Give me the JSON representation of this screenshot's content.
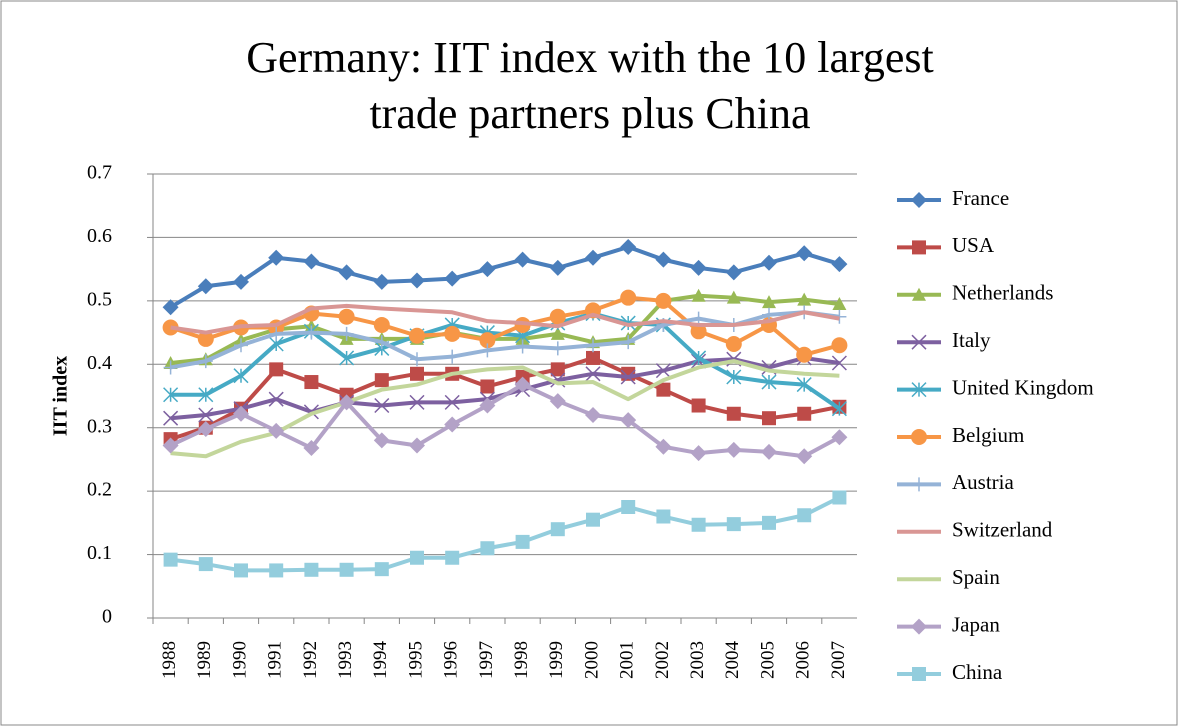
{
  "chart_data": {
    "type": "line",
    "title": [
      "Germany: IIT index with the 10 largest",
      "trade partners plus China"
    ],
    "ylabel": "IIT index",
    "categories": [
      "1988",
      "1989",
      "1990",
      "1991",
      "1992",
      "1993",
      "1994",
      "1995",
      "1996",
      "1997",
      "1998",
      "1999",
      "2000",
      "2001",
      "2002",
      "2003",
      "2004",
      "2005",
      "2006",
      "2007"
    ],
    "ylim": [
      0,
      0.7
    ],
    "yticks": [
      0,
      0.1,
      0.2,
      0.3,
      0.4,
      0.5,
      0.6,
      0.7
    ],
    "grid": true,
    "legend": "right",
    "series": [
      {
        "name": "France",
        "color": "#4a7ebb",
        "marker": "diamond",
        "values": [
          0.49,
          0.523,
          0.53,
          0.568,
          0.562,
          0.545,
          0.53,
          0.532,
          0.535,
          0.55,
          0.565,
          0.552,
          0.568,
          0.585,
          0.565,
          0.552,
          0.545,
          0.56,
          0.575,
          0.558
        ]
      },
      {
        "name": "USA",
        "color": "#be4b48",
        "marker": "square",
        "values": [
          0.282,
          0.3,
          0.33,
          0.392,
          0.372,
          0.352,
          0.375,
          0.385,
          0.385,
          0.365,
          0.38,
          0.392,
          0.41,
          0.385,
          0.36,
          0.335,
          0.322,
          0.315,
          0.322,
          0.333
        ]
      },
      {
        "name": "Netherlands",
        "color": "#98b954",
        "marker": "triangle",
        "values": [
          0.402,
          0.408,
          0.438,
          0.455,
          0.46,
          0.44,
          0.44,
          0.44,
          0.45,
          0.44,
          0.44,
          0.448,
          0.435,
          0.44,
          0.5,
          0.508,
          0.505,
          0.498,
          0.502,
          0.495
        ]
      },
      {
        "name": "Italy",
        "color": "#7d60a0",
        "marker": "x",
        "values": [
          0.315,
          0.32,
          0.33,
          0.345,
          0.325,
          0.34,
          0.335,
          0.34,
          0.34,
          0.345,
          0.36,
          0.375,
          0.385,
          0.38,
          0.39,
          0.405,
          0.408,
          0.395,
          0.41,
          0.402
        ]
      },
      {
        "name": "United Kingdom",
        "color": "#46aac5",
        "marker": "star",
        "values": [
          0.352,
          0.352,
          0.382,
          0.432,
          0.452,
          0.41,
          0.425,
          0.445,
          0.462,
          0.45,
          0.445,
          0.465,
          0.48,
          0.465,
          0.462,
          0.41,
          0.38,
          0.372,
          0.368,
          0.33
        ]
      },
      {
        "name": "Belgium",
        "color": "#f79646",
        "marker": "circle",
        "values": [
          0.458,
          0.44,
          0.458,
          0.458,
          0.48,
          0.475,
          0.462,
          0.445,
          0.448,
          0.438,
          0.462,
          0.475,
          0.485,
          0.505,
          0.5,
          0.452,
          0.432,
          0.462,
          0.415,
          0.43
        ]
      },
      {
        "name": "Austria",
        "color": "#95b3d7",
        "marker": "plus",
        "values": [
          0.395,
          0.405,
          0.43,
          0.448,
          0.45,
          0.448,
          0.435,
          0.408,
          0.412,
          0.422,
          0.428,
          0.425,
          0.43,
          0.435,
          0.462,
          0.472,
          0.462,
          0.478,
          0.482,
          0.475
        ]
      },
      {
        "name": "Switzerland",
        "color": "#d99694",
        "marker": "none",
        "values": [
          0.458,
          0.45,
          0.46,
          0.462,
          0.488,
          0.492,
          0.488,
          0.485,
          0.482,
          0.468,
          0.465,
          0.46,
          0.478,
          0.462,
          0.468,
          0.462,
          0.462,
          0.468,
          0.482,
          0.472
        ]
      },
      {
        "name": "Spain",
        "color": "#c3d69b",
        "marker": "none",
        "values": [
          0.26,
          0.255,
          0.278,
          0.292,
          0.322,
          0.34,
          0.36,
          0.368,
          0.385,
          0.392,
          0.395,
          0.37,
          0.372,
          0.345,
          0.375,
          0.395,
          0.405,
          0.39,
          0.385,
          0.382
        ]
      },
      {
        "name": "Japan",
        "color": "#b3a2c7",
        "marker": "diamond",
        "values": [
          0.272,
          0.298,
          0.322,
          0.295,
          0.268,
          0.34,
          0.28,
          0.272,
          0.305,
          0.335,
          0.368,
          0.342,
          0.32,
          0.312,
          0.27,
          0.26,
          0.265,
          0.262,
          0.255,
          0.285
        ]
      },
      {
        "name": "China",
        "color": "#93cddd",
        "marker": "square",
        "values": [
          0.092,
          0.085,
          0.075,
          0.075,
          0.076,
          0.076,
          0.077,
          0.095,
          0.095,
          0.11,
          0.12,
          0.14,
          0.155,
          0.175,
          0.16,
          0.147,
          0.148,
          0.15,
          0.162,
          0.19
        ]
      }
    ]
  }
}
